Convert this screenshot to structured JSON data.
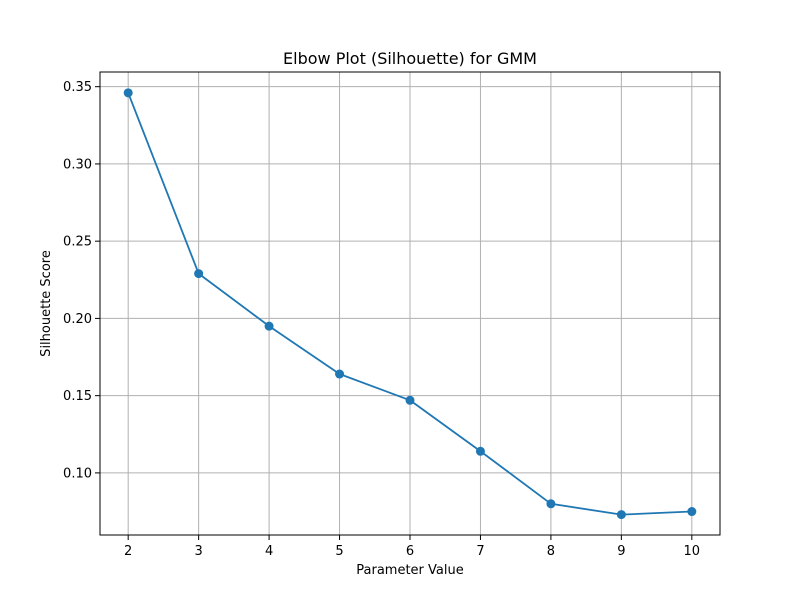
{
  "chart_data": {
    "type": "line",
    "title": "Elbow Plot (Silhouette) for GMM",
    "xlabel": "Parameter Value",
    "ylabel": "Silhouette Score",
    "x": [
      2,
      3,
      4,
      5,
      6,
      7,
      8,
      9,
      10
    ],
    "series": [
      {
        "values": [
          0.346,
          0.229,
          0.195,
          0.164,
          0.147,
          0.114,
          0.08,
          0.073,
          0.075
        ],
        "color": "#1f77b4",
        "marker": "circle"
      }
    ],
    "xlim": [
      1.6,
      10.4
    ],
    "ylim": [
      0.0598,
      0.3595
    ],
    "xticks": [
      2,
      3,
      4,
      5,
      6,
      7,
      8,
      9,
      10
    ],
    "xtick_labels": [
      "2",
      "3",
      "4",
      "5",
      "6",
      "7",
      "8",
      "9",
      "10"
    ],
    "yticks": [
      0.1,
      0.15,
      0.2,
      0.25,
      0.3,
      0.35
    ],
    "ytick_labels": [
      "0.10",
      "0.15",
      "0.20",
      "0.25",
      "0.30",
      "0.35"
    ],
    "grid": true,
    "grid_color": "#b0b0b0",
    "legend": "none"
  }
}
